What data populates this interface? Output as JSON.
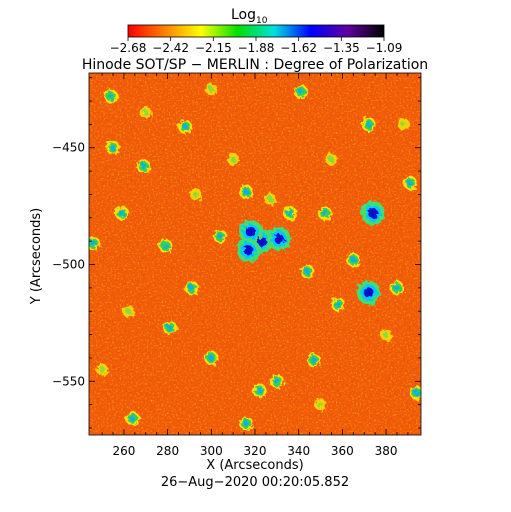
{
  "colorbar": {
    "title_main": "Log",
    "title_sub": "10",
    "tick_labels": [
      "−2.68",
      "−2.42",
      "−2.15",
      "−1.88",
      "−1.62",
      "−1.35",
      "−1.09"
    ],
    "range": [
      -2.68,
      -1.09
    ],
    "colormap": [
      "#ff0000",
      "#ff8000",
      "#ffff00",
      "#00e000",
      "#00e0e0",
      "#0000ff",
      "#6000a0",
      "#000000"
    ]
  },
  "chart_data": {
    "type": "heatmap",
    "title": "Hinode SOT/SP − MERLIN : Degree of Polarization",
    "xlabel": "X (Arcseconds)",
    "ylabel": "Y (Arcseconds)",
    "xlim": [
      244,
      396
    ],
    "ylim": [
      -573,
      -418
    ],
    "x_ticks": [
      260,
      280,
      300,
      320,
      340,
      360,
      380
    ],
    "y_ticks": [
      -450,
      -500,
      -550
    ],
    "timestamp": "26−Aug−2020 00:20:05.852",
    "background_color": "#f05a0a",
    "features": [
      {
        "x": 323,
        "y": -490,
        "level": "high"
      },
      {
        "x": 331,
        "y": -489,
        "level": "high"
      },
      {
        "x": 318,
        "y": -486,
        "level": "high"
      },
      {
        "x": 317,
        "y": -494,
        "level": "high"
      },
      {
        "x": 374,
        "y": -478,
        "level": "high"
      },
      {
        "x": 372,
        "y": -512,
        "level": "high"
      },
      {
        "x": 255,
        "y": -450,
        "level": "medium"
      },
      {
        "x": 259,
        "y": -478,
        "level": "medium"
      },
      {
        "x": 246,
        "y": -491,
        "level": "medium"
      },
      {
        "x": 269,
        "y": -458,
        "level": "medium"
      },
      {
        "x": 279,
        "y": -492,
        "level": "medium"
      },
      {
        "x": 291,
        "y": -510,
        "level": "medium"
      },
      {
        "x": 304,
        "y": -488,
        "level": "medium"
      },
      {
        "x": 316,
        "y": -469,
        "level": "medium"
      },
      {
        "x": 336,
        "y": -478,
        "level": "medium"
      },
      {
        "x": 344,
        "y": -503,
        "level": "medium"
      },
      {
        "x": 352,
        "y": -478,
        "level": "medium"
      },
      {
        "x": 358,
        "y": -517,
        "level": "medium"
      },
      {
        "x": 365,
        "y": -498,
        "level": "medium"
      },
      {
        "x": 372,
        "y": -440,
        "level": "medium"
      },
      {
        "x": 385,
        "y": -510,
        "level": "medium"
      },
      {
        "x": 322,
        "y": -554,
        "level": "medium"
      },
      {
        "x": 330,
        "y": -550,
        "level": "medium"
      },
      {
        "x": 281,
        "y": -527,
        "level": "medium"
      },
      {
        "x": 264,
        "y": -566,
        "level": "medium"
      },
      {
        "x": 316,
        "y": -568,
        "level": "medium"
      },
      {
        "x": 300,
        "y": -540,
        "level": "medium"
      },
      {
        "x": 288,
        "y": -441,
        "level": "medium"
      },
      {
        "x": 341,
        "y": -426,
        "level": "medium"
      },
      {
        "x": 254,
        "y": -428,
        "level": "medium"
      },
      {
        "x": 391,
        "y": -465,
        "level": "medium"
      },
      {
        "x": 347,
        "y": -541,
        "level": "medium"
      },
      {
        "x": 394,
        "y": -555,
        "level": "medium"
      },
      {
        "x": 327,
        "y": -472,
        "level": "low"
      },
      {
        "x": 310,
        "y": -455,
        "level": "low"
      },
      {
        "x": 270,
        "y": -435,
        "level": "low"
      },
      {
        "x": 355,
        "y": -455,
        "level": "low"
      },
      {
        "x": 380,
        "y": -530,
        "level": "low"
      },
      {
        "x": 262,
        "y": -520,
        "level": "low"
      },
      {
        "x": 293,
        "y": -470,
        "level": "low"
      },
      {
        "x": 350,
        "y": -560,
        "level": "low"
      },
      {
        "x": 300,
        "y": -425,
        "level": "low"
      },
      {
        "x": 388,
        "y": -440,
        "level": "low"
      },
      {
        "x": 250,
        "y": -545,
        "level": "low"
      }
    ]
  }
}
